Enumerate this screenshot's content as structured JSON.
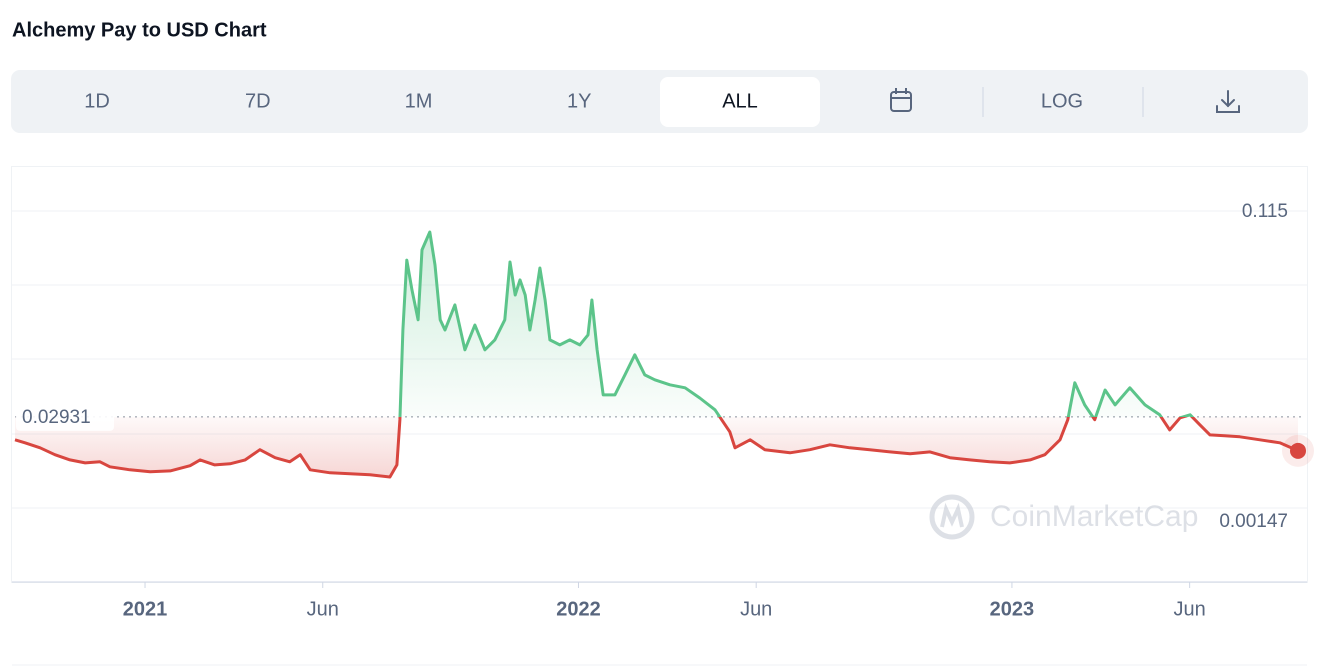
{
  "header": {
    "title": "Alchemy Pay to USD Chart",
    "tabs": [
      "1D",
      "7D",
      "1M",
      "1Y",
      "ALL"
    ],
    "active_tab": 4,
    "log_button": "LOG"
  },
  "chart_data": {
    "type": "line",
    "x": [
      2020.7,
      2020.723,
      2020.758,
      2020.792,
      2020.827,
      2020.862,
      2020.896,
      2020.919,
      2020.965,
      2021.012,
      2021.058,
      2021.104,
      2021.127,
      2021.161,
      2021.196,
      2021.231,
      2021.265,
      2021.3,
      2021.334,
      2021.358,
      2021.381,
      2021.427,
      2021.473,
      2021.519,
      2021.565,
      2021.581,
      2021.588,
      2021.595,
      2021.604,
      2021.616,
      2021.63,
      2021.639,
      2021.657,
      2021.669,
      2021.681,
      2021.692,
      2021.715,
      2021.738,
      2021.761,
      2021.784,
      2021.807,
      2021.83,
      2021.842,
      2021.854,
      2021.865,
      2021.877,
      2021.888,
      2021.9,
      2021.911,
      2021.923,
      2021.934,
      2021.957,
      2021.98,
      2022.003,
      2022.022,
      2022.031,
      2022.043,
      2022.057,
      2022.084,
      2022.107,
      2022.13,
      2022.153,
      2022.176,
      2022.211,
      2022.246,
      2022.28,
      2022.315,
      2022.349,
      2022.361,
      2022.396,
      2022.43,
      2022.488,
      2022.534,
      2022.58,
      2022.626,
      2022.672,
      2022.719,
      2022.765,
      2022.811,
      2022.857,
      2022.903,
      2022.949,
      2022.995,
      2023.042,
      2023.076,
      2023.111,
      2023.129,
      2023.145,
      2023.168,
      2023.191,
      2023.215,
      2023.238,
      2023.272,
      2023.307,
      2023.341,
      2023.364,
      2023.388,
      2023.411,
      2023.434,
      2023.457,
      2023.491,
      2023.526,
      2023.572,
      2023.618,
      2023.66
    ],
    "values": [
      0.0187,
      0.0173,
      0.015,
      0.0118,
      0.0094,
      0.008,
      0.0085,
      0.0062,
      0.0048,
      0.0039,
      0.0043,
      0.0067,
      0.0094,
      0.0071,
      0.0076,
      0.0094,
      0.0141,
      0.0104,
      0.0085,
      0.0118,
      0.0048,
      0.0034,
      0.003,
      0.0025,
      0.00147,
      0.0071,
      0.028,
      0.0696,
      0.102,
      0.0881,
      0.0743,
      0.1067,
      0.115,
      0.0997,
      0.0743,
      0.0696,
      0.0812,
      0.0604,
      0.0719,
      0.0604,
      0.065,
      0.0743,
      0.1011,
      0.0858,
      0.0928,
      0.0858,
      0.0696,
      0.0835,
      0.0983,
      0.0835,
      0.065,
      0.0627,
      0.065,
      0.0627,
      0.0673,
      0.0835,
      0.0604,
      0.0395,
      0.0395,
      0.0488,
      0.0581,
      0.0488,
      0.0465,
      0.0442,
      0.0428,
      0.0381,
      0.0326,
      0.0224,
      0.015,
      0.0187,
      0.0141,
      0.0127,
      0.0141,
      0.0164,
      0.015,
      0.0141,
      0.0131,
      0.0122,
      0.0131,
      0.0104,
      0.0094,
      0.0085,
      0.008,
      0.0094,
      0.0118,
      0.0187,
      0.028,
      0.0451,
      0.0349,
      0.028,
      0.0418,
      0.0349,
      0.0428,
      0.0349,
      0.0303,
      0.0233,
      0.0289,
      0.0303,
      0.0256,
      0.021,
      0.0206,
      0.0201,
      0.0187,
      0.0173,
      0.0136
    ],
    "xlim": [
      2020.7,
      2023.66
    ],
    "xticks": [
      {
        "value": 2021,
        "label": "2021"
      },
      {
        "value": 2021.41,
        "label": "Jun"
      },
      {
        "value": 2022,
        "label": "2022"
      },
      {
        "value": 2022.41,
        "label": "Jun"
      },
      {
        "value": 2023,
        "label": "2023"
      },
      {
        "value": 2023.41,
        "label": "Jun"
      }
    ],
    "ylim": [
      0.00147,
      0.115
    ],
    "high": 0.115,
    "low": 0.00147,
    "baseline": 0.02931,
    "up_color": "#5cc48a",
    "down_color": "#d8463f",
    "watermark": "CoinMarketCap"
  }
}
